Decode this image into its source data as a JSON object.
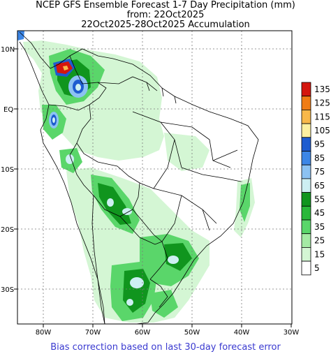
{
  "title": {
    "line1": "NCEP GFS Ensemble Forecast 1-7 Day Precipitation (mm)",
    "line2": "from: 22Oct2025",
    "line3": "22Oct2025-28Oct2025 Accumulation"
  },
  "footer": "Bias correction based on last 30-day forecast error",
  "axes": {
    "lat_labels": [
      "10N",
      "EQ",
      "10S",
      "20S",
      "30S"
    ],
    "lon_labels": [
      "80W",
      "70W",
      "60W",
      "50W",
      "40W",
      "30W"
    ]
  },
  "legend": {
    "labels": [
      "135",
      "125",
      "115",
      "105",
      "95",
      "85",
      "75",
      "65",
      "55",
      "45",
      "35",
      "25",
      "15",
      "5"
    ],
    "colors": [
      "#d4160e",
      "#f07c14",
      "#f8b84a",
      "#fdf0a0",
      "#1e5cd0",
      "#3c86e6",
      "#8cc2f2",
      "#cdeff2",
      "#10951e",
      "#2ab83a",
      "#5ad66a",
      "#a4eaa4",
      "#d4f6d4",
      "#ffffff"
    ]
  },
  "colors": {
    "light_green": "#d4f6d4",
    "mid_green": "#5ad66a",
    "dark_green": "#10951e",
    "light_blue": "#8cc2f2",
    "blue": "#1e5cd0",
    "red": "#d4160e",
    "boundary": "#000000",
    "grid": "#7a7a7a"
  }
}
